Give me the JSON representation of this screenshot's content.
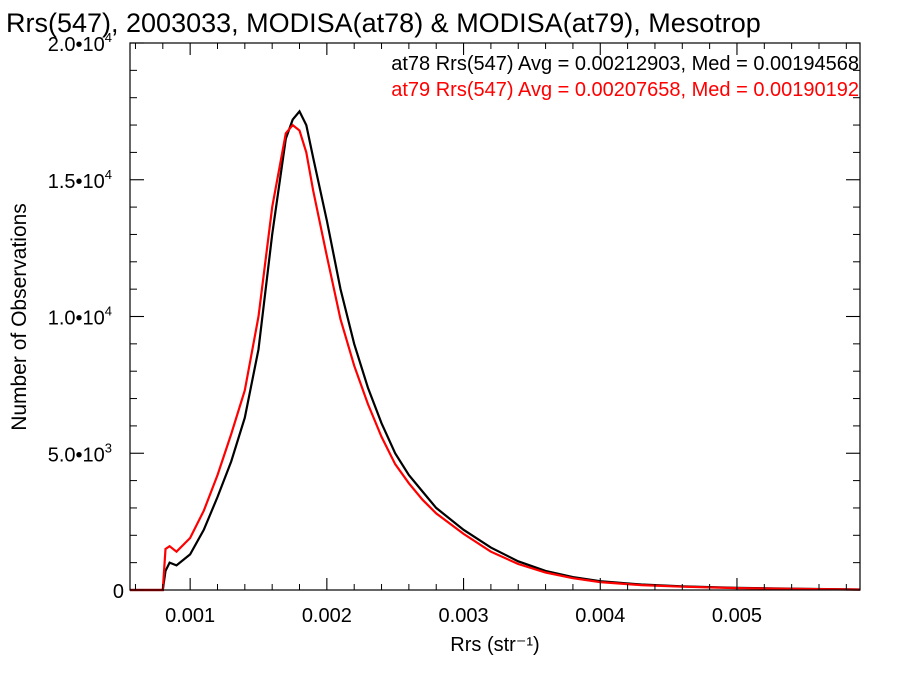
{
  "chart_data": {
    "type": "line",
    "title": "Rrs(547), 2003033, MODISA(at78) & MODISA(at79), Mesotrop",
    "xlabel": "Rrs (str⁻¹)",
    "ylabel": "Number of Observations",
    "xlim": [
      0.00056,
      0.0059
    ],
    "ylim": [
      0,
      20000
    ],
    "x_ticks": [
      {
        "value": 0.001,
        "label": "0.001"
      },
      {
        "value": 0.002,
        "label": "0.002"
      },
      {
        "value": 0.003,
        "label": "0.003"
      },
      {
        "value": 0.004,
        "label": "0.004"
      },
      {
        "value": 0.005,
        "label": "0.005"
      }
    ],
    "y_ticks": [
      {
        "value": 0,
        "label": "0",
        "exp": ""
      },
      {
        "value": 5000,
        "label": "5.0•10",
        "exp": "3"
      },
      {
        "value": 10000,
        "label": "1.0•10",
        "exp": "4"
      },
      {
        "value": 15000,
        "label": "1.5•10",
        "exp": "4"
      },
      {
        "value": 20000,
        "label": "2.0•10",
        "exp": "4"
      }
    ],
    "grid": false,
    "series": [
      {
        "name": "at78",
        "color": "#000000",
        "stats_text": "at78 Rrs(547) Avg = 0.00212903, Med = 0.00194568",
        "x": [
          0.00056,
          0.0008,
          0.00082,
          0.00085,
          0.0009,
          0.001,
          0.0011,
          0.0012,
          0.0013,
          0.0014,
          0.0015,
          0.0016,
          0.0017,
          0.00175,
          0.0018,
          0.00185,
          0.0019,
          0.002,
          0.0021,
          0.0022,
          0.0023,
          0.0024,
          0.0025,
          0.0026,
          0.0027,
          0.0028,
          0.003,
          0.0032,
          0.0034,
          0.0036,
          0.0038,
          0.004,
          0.0043,
          0.0046,
          0.005,
          0.0055,
          0.0059
        ],
        "y": [
          0,
          0,
          700,
          1000,
          900,
          1300,
          2200,
          3400,
          4700,
          6300,
          8800,
          13000,
          16500,
          17200,
          17500,
          17000,
          15800,
          13500,
          11000,
          9000,
          7400,
          6100,
          5000,
          4200,
          3600,
          3000,
          2200,
          1550,
          1050,
          700,
          470,
          320,
          200,
          130,
          80,
          40,
          20
        ]
      },
      {
        "name": "at79",
        "color": "#ff0000",
        "stats_text": "at79 Rrs(547) Avg = 0.00207658, Med = 0.00190192",
        "x": [
          0.00056,
          0.0008,
          0.00082,
          0.00085,
          0.0009,
          0.001,
          0.0011,
          0.0012,
          0.0013,
          0.0014,
          0.0015,
          0.0016,
          0.0017,
          0.00175,
          0.0018,
          0.00185,
          0.0019,
          0.002,
          0.0021,
          0.0022,
          0.0023,
          0.0024,
          0.0025,
          0.0026,
          0.0027,
          0.0028,
          0.003,
          0.0032,
          0.0034,
          0.0036,
          0.0038,
          0.004,
          0.0043,
          0.0046,
          0.005,
          0.0055,
          0.0059
        ],
        "y": [
          0,
          0,
          1500,
          1600,
          1400,
          1900,
          2900,
          4200,
          5700,
          7300,
          10000,
          14000,
          16700,
          17000,
          16800,
          16000,
          14600,
          12200,
          9900,
          8200,
          6800,
          5600,
          4600,
          3900,
          3300,
          2800,
          2050,
          1400,
          950,
          640,
          430,
          290,
          180,
          120,
          70,
          35,
          15
        ]
      }
    ]
  }
}
